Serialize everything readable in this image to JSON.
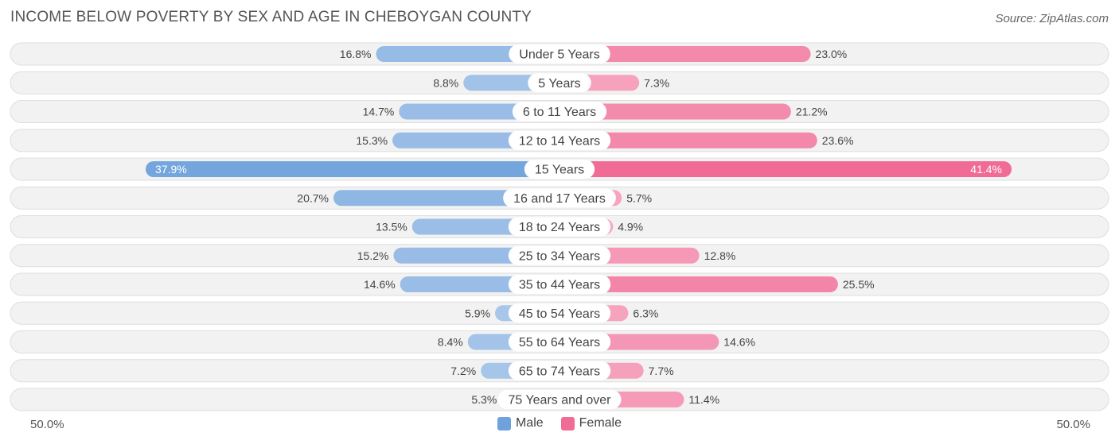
{
  "chart_data": {
    "type": "bar",
    "title": "INCOME BELOW POVERTY BY SEX AND AGE IN CHEBOYGAN COUNTY",
    "source": "Source: ZipAtlas.com",
    "categories": [
      "Under 5 Years",
      "5 Years",
      "6 to 11 Years",
      "12 to 14 Years",
      "15 Years",
      "16 and 17 Years",
      "18 to 24 Years",
      "25 to 34 Years",
      "35 to 44 Years",
      "45 to 54 Years",
      "55 to 64 Years",
      "65 to 74 Years",
      "75 Years and over"
    ],
    "series": [
      {
        "name": "Male",
        "color": "#6fa2dc",
        "values": [
          16.8,
          8.8,
          14.7,
          15.3,
          37.9,
          20.7,
          13.5,
          15.2,
          14.6,
          5.9,
          8.4,
          7.2,
          5.3
        ],
        "labels": [
          "16.8%",
          "8.8%",
          "14.7%",
          "15.3%",
          "37.9%",
          "20.7%",
          "13.5%",
          "15.2%",
          "14.6%",
          "5.9%",
          "8.4%",
          "7.2%",
          "5.3%"
        ]
      },
      {
        "name": "Female",
        "color": "#f06b96",
        "values": [
          23.0,
          7.3,
          21.2,
          23.6,
          41.4,
          5.7,
          4.9,
          12.8,
          25.5,
          6.3,
          14.6,
          7.7,
          11.4
        ],
        "labels": [
          "23.0%",
          "7.3%",
          "21.2%",
          "23.6%",
          "41.4%",
          "5.7%",
          "4.9%",
          "12.8%",
          "25.5%",
          "6.3%",
          "14.6%",
          "7.7%",
          "11.4%"
        ]
      }
    ],
    "xlim": [
      -50,
      50
    ],
    "axis_left_label": "50.0%",
    "axis_right_label": "50.0%",
    "legend": [
      "Male",
      "Female"
    ],
    "legend_position": "bottom-center"
  }
}
